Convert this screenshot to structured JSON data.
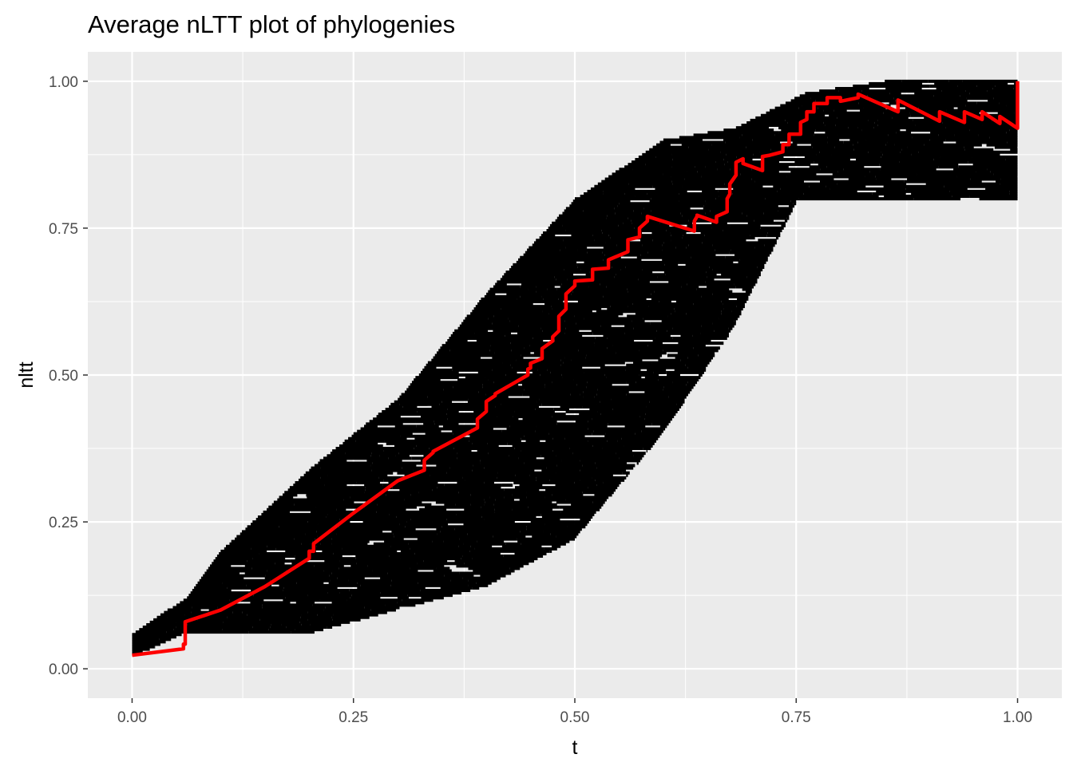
{
  "chart_data": {
    "type": "line",
    "title": "Average nLTT plot of phylogenies",
    "xlabel": "t",
    "ylabel": "nltt",
    "xlim": [
      -0.05,
      1.05
    ],
    "ylim": [
      -0.05,
      1.05
    ],
    "x_ticks": [
      0,
      0.25,
      0.5,
      0.75,
      1
    ],
    "y_ticks": [
      0,
      0.25,
      0.5,
      0.75,
      1
    ],
    "x_tick_labels": [
      "0.00",
      "0.25",
      "0.50",
      "0.75",
      "1.00"
    ],
    "y_tick_labels": [
      "0.00",
      "0.25",
      "0.50",
      "0.75",
      "1.00"
    ],
    "grid": true,
    "background": "#ebebeb",
    "gridline_color": "#ffffff",
    "series": [
      {
        "role": "individual phylogeny nLTT points",
        "color": "#000000",
        "band": {
          "t": [
            0.0,
            0.06,
            0.1,
            0.2,
            0.3,
            0.4,
            0.5,
            0.6,
            0.68,
            0.76,
            0.85,
            0.95,
            1.0
          ],
          "lower": [
            0.02,
            0.06,
            0.06,
            0.06,
            0.1,
            0.14,
            0.22,
            0.4,
            0.58,
            0.82,
            0.84,
            0.8,
            0.8
          ],
          "upper": [
            0.06,
            0.12,
            0.2,
            0.34,
            0.46,
            0.64,
            0.8,
            0.9,
            0.92,
            0.98,
            1.0,
            1.0,
            1.0
          ]
        }
      },
      {
        "role": "average nLTT",
        "color": "#ff0000",
        "x": [
          0,
          0.058,
          0.058,
          0.06,
          0.06,
          0.1,
          0.15,
          0.2,
          0.2,
          0.205,
          0.205,
          0.25,
          0.3,
          0.33,
          0.33,
          0.34,
          0.34,
          0.39,
          0.39,
          0.4,
          0.4,
          0.41,
          0.41,
          0.447,
          0.447,
          0.45,
          0.45,
          0.463,
          0.463,
          0.475,
          0.475,
          0.482,
          0.482,
          0.49,
          0.49,
          0.5,
          0.5,
          0.52,
          0.52,
          0.538,
          0.538,
          0.56,
          0.56,
          0.573,
          0.573,
          0.582,
          0.582,
          0.635,
          0.635,
          0.638,
          0.638,
          0.66,
          0.66,
          0.672,
          0.672,
          0.675,
          0.675,
          0.682,
          0.682,
          0.69,
          0.69,
          0.712,
          0.712,
          0.72,
          0.72,
          0.735,
          0.735,
          0.742,
          0.742,
          0.755,
          0.755,
          0.762,
          0.762,
          0.77,
          0.77,
          0.785,
          0.785,
          0.8,
          0.8,
          0.82,
          0.82,
          0.865,
          0.865,
          0.912,
          0.912,
          0.94,
          0.94,
          0.96,
          0.96,
          0.98,
          0.98,
          1.0,
          1.0
        ],
        "y": [
          0.023,
          0.034,
          0.042,
          0.042,
          0.08,
          0.1,
          0.14,
          0.188,
          0.2,
          0.2,
          0.213,
          0.265,
          0.32,
          0.338,
          0.355,
          0.368,
          0.37,
          0.41,
          0.425,
          0.438,
          0.455,
          0.465,
          0.468,
          0.5,
          0.51,
          0.512,
          0.52,
          0.528,
          0.545,
          0.558,
          0.565,
          0.575,
          0.6,
          0.612,
          0.638,
          0.652,
          0.66,
          0.662,
          0.68,
          0.682,
          0.696,
          0.71,
          0.73,
          0.735,
          0.75,
          0.762,
          0.77,
          0.745,
          0.762,
          0.77,
          0.772,
          0.76,
          0.77,
          0.778,
          0.8,
          0.808,
          0.825,
          0.84,
          0.862,
          0.868,
          0.86,
          0.848,
          0.872,
          0.874,
          0.874,
          0.88,
          0.892,
          0.892,
          0.91,
          0.91,
          0.93,
          0.935,
          0.948,
          0.948,
          0.962,
          0.962,
          0.972,
          0.972,
          0.966,
          0.972,
          0.978,
          0.948,
          0.968,
          0.932,
          0.948,
          0.93,
          0.948,
          0.935,
          0.948,
          0.928,
          0.94,
          0.92,
          1.0
        ]
      }
    ]
  }
}
